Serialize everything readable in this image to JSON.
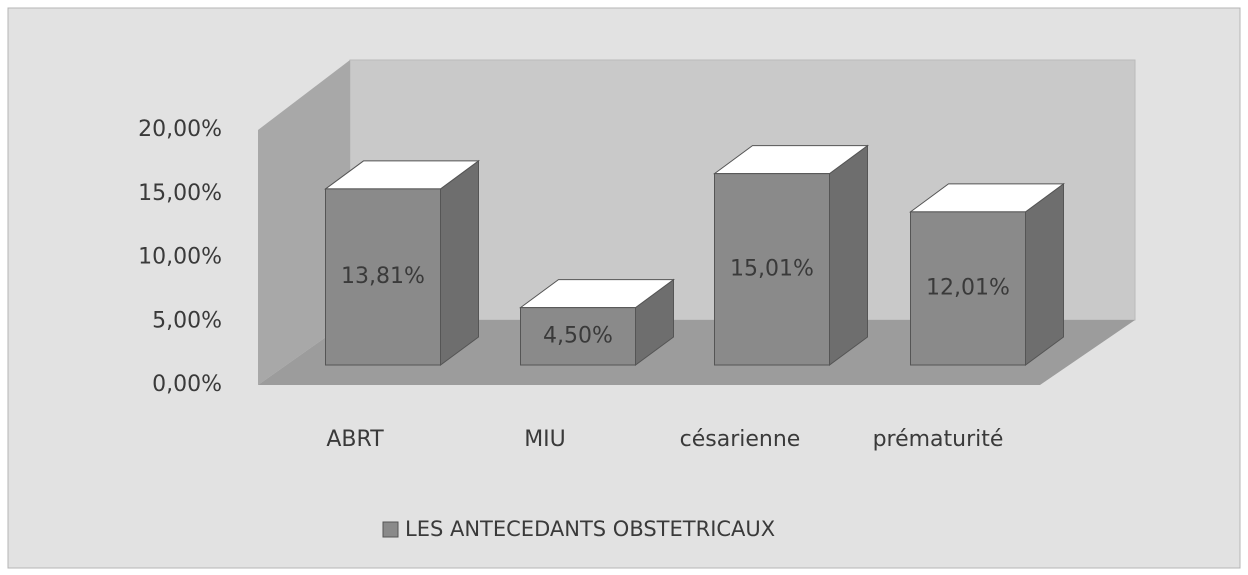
{
  "chart_data": {
    "type": "bar3d",
    "categories": [
      "ABRT",
      "MIU",
      "césarienne",
      "prématurité"
    ],
    "series": [
      {
        "name": "LES ANTECEDANTS OBSTETRICAUX",
        "color": "#8a8a8a",
        "values": [
          13.81,
          4.5,
          15.01,
          12.01
        ],
        "value_labels": [
          "13,81%",
          "4,50%",
          "15,01%",
          "12,01%"
        ]
      }
    ],
    "ylim": [
      0,
      20
    ],
    "yticks": [
      {
        "value": 0,
        "label": "0,00%"
      },
      {
        "value": 5,
        "label": "5,00%"
      },
      {
        "value": 10,
        "label": "10,00%"
      },
      {
        "value": 15,
        "label": "15,00%"
      },
      {
        "value": 20,
        "label": "20,00%"
      }
    ],
    "grid": false,
    "legend": "bottom"
  }
}
